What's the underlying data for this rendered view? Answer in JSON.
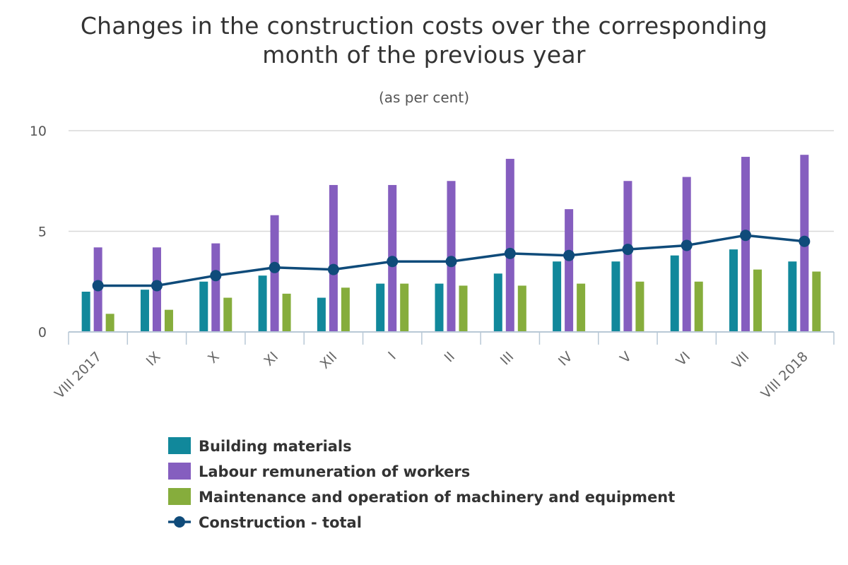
{
  "chart_data": {
    "type": "bar",
    "title_lines": [
      "Changes in the construction costs over the corresponding",
      "month of the previous year"
    ],
    "subtitle": "(as per cent)",
    "categories": [
      "VIII 2017",
      "IX",
      "X",
      "XI",
      "XII",
      "I",
      "II",
      "III",
      "IV",
      "V",
      "VI",
      "VII",
      "VIII 2018"
    ],
    "ylim": [
      0,
      10
    ],
    "yticks": [
      0,
      5,
      10
    ],
    "grid": true,
    "legend_position": "bottom",
    "series": [
      {
        "name": "Building materials",
        "kind": "bar",
        "color": "#11889b",
        "values": [
          2.0,
          2.1,
          2.5,
          2.8,
          1.7,
          2.4,
          2.4,
          2.9,
          3.5,
          3.5,
          3.8,
          4.1,
          3.5
        ]
      },
      {
        "name": "Labour remuneration of workers",
        "kind": "bar",
        "color": "#855ebf",
        "values": [
          4.2,
          4.2,
          4.4,
          5.8,
          7.3,
          7.3,
          7.5,
          8.6,
          6.1,
          7.5,
          7.7,
          8.7,
          8.8
        ]
      },
      {
        "name": "Maintenance and operation of machinery and equipment",
        "kind": "bar",
        "color": "#86ad3c",
        "values": [
          0.9,
          1.1,
          1.7,
          1.9,
          2.2,
          2.4,
          2.3,
          2.3,
          2.4,
          2.5,
          2.5,
          3.1,
          3.0
        ]
      },
      {
        "name": "Construction - total",
        "kind": "line",
        "color": "#0f4b7a",
        "values": [
          2.3,
          2.3,
          2.8,
          3.2,
          3.1,
          3.5,
          3.5,
          3.9,
          3.8,
          4.1,
          4.3,
          4.8,
          4.5
        ]
      }
    ]
  }
}
